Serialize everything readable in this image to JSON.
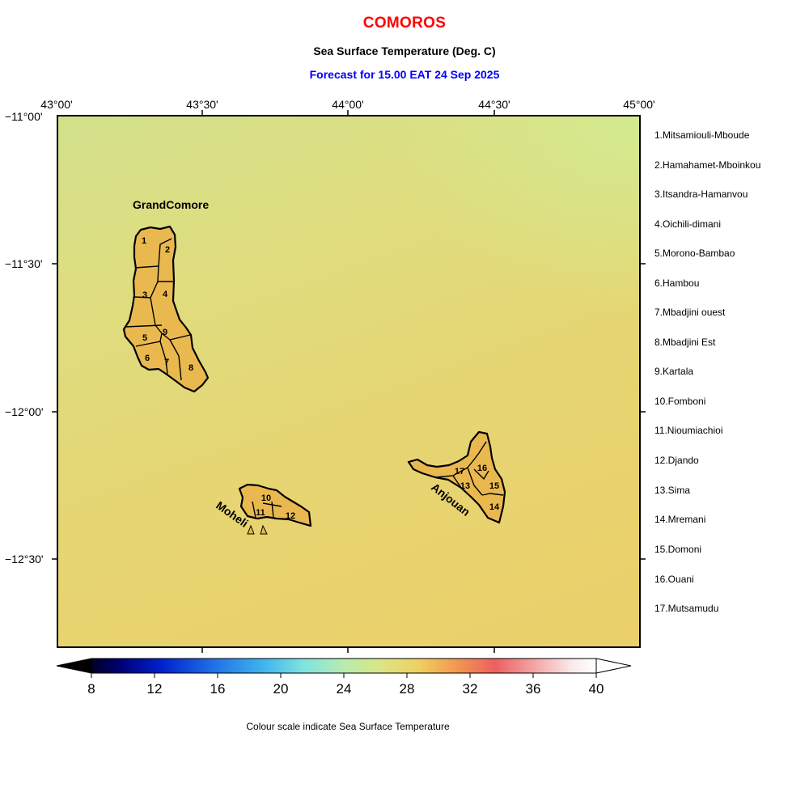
{
  "header": {
    "title": "COMOROS",
    "subtitle": "Sea Surface Temperature (Deg. C)",
    "forecast": "Forecast for  15.00 EAT 24 Sep 2025",
    "title_color": "#ff0000",
    "forecast_color": "#0000ff"
  },
  "axes": {
    "lon_labels": [
      "43°00'",
      "43°30'",
      "44°00'",
      "44°30'",
      "45°00'"
    ],
    "lat_labels": [
      "−11°00'",
      "−11°30'",
      "−12°00'",
      "−12°30'"
    ]
  },
  "islands": {
    "grand_comore": "GrandComore",
    "moheli": "Moheli",
    "anjouan": "Anjouan",
    "fill_color": "#e9b94f"
  },
  "regions": [
    {
      "num": "1",
      "name": "1.Mitsamiouli-Mboude"
    },
    {
      "num": "2",
      "name": "2.Hamahamet-Mboinkou"
    },
    {
      "num": "3",
      "name": "3.Itsandra-Hamanvou"
    },
    {
      "num": "4",
      "name": "4.Oichili-dimani"
    },
    {
      "num": "5",
      "name": "5.Morono-Bambao"
    },
    {
      "num": "6",
      "name": "6.Hambou"
    },
    {
      "num": "7",
      "name": "7.Mbadjini ouest"
    },
    {
      "num": "8",
      "name": "8.Mbadjini Est"
    },
    {
      "num": "9",
      "name": "9.Kartala"
    },
    {
      "num": "10",
      "name": "10.Fomboni"
    },
    {
      "num": "11",
      "name": "11.Nioumiachioi"
    },
    {
      "num": "12",
      "name": "12.Djando"
    },
    {
      "num": "13",
      "name": "13.Sima"
    },
    {
      "num": "14",
      "name": "14.Mremani"
    },
    {
      "num": "15",
      "name": "15.Domoni"
    },
    {
      "num": "16",
      "name": "16.Ouani"
    },
    {
      "num": "17",
      "name": "17.Mutsamudu"
    }
  ],
  "colorbar": {
    "ticks": [
      "8",
      "12",
      "16",
      "20",
      "24",
      "28",
      "32",
      "36",
      "40"
    ],
    "caption": "Colour scale indicate Sea Surface Temperature"
  }
}
